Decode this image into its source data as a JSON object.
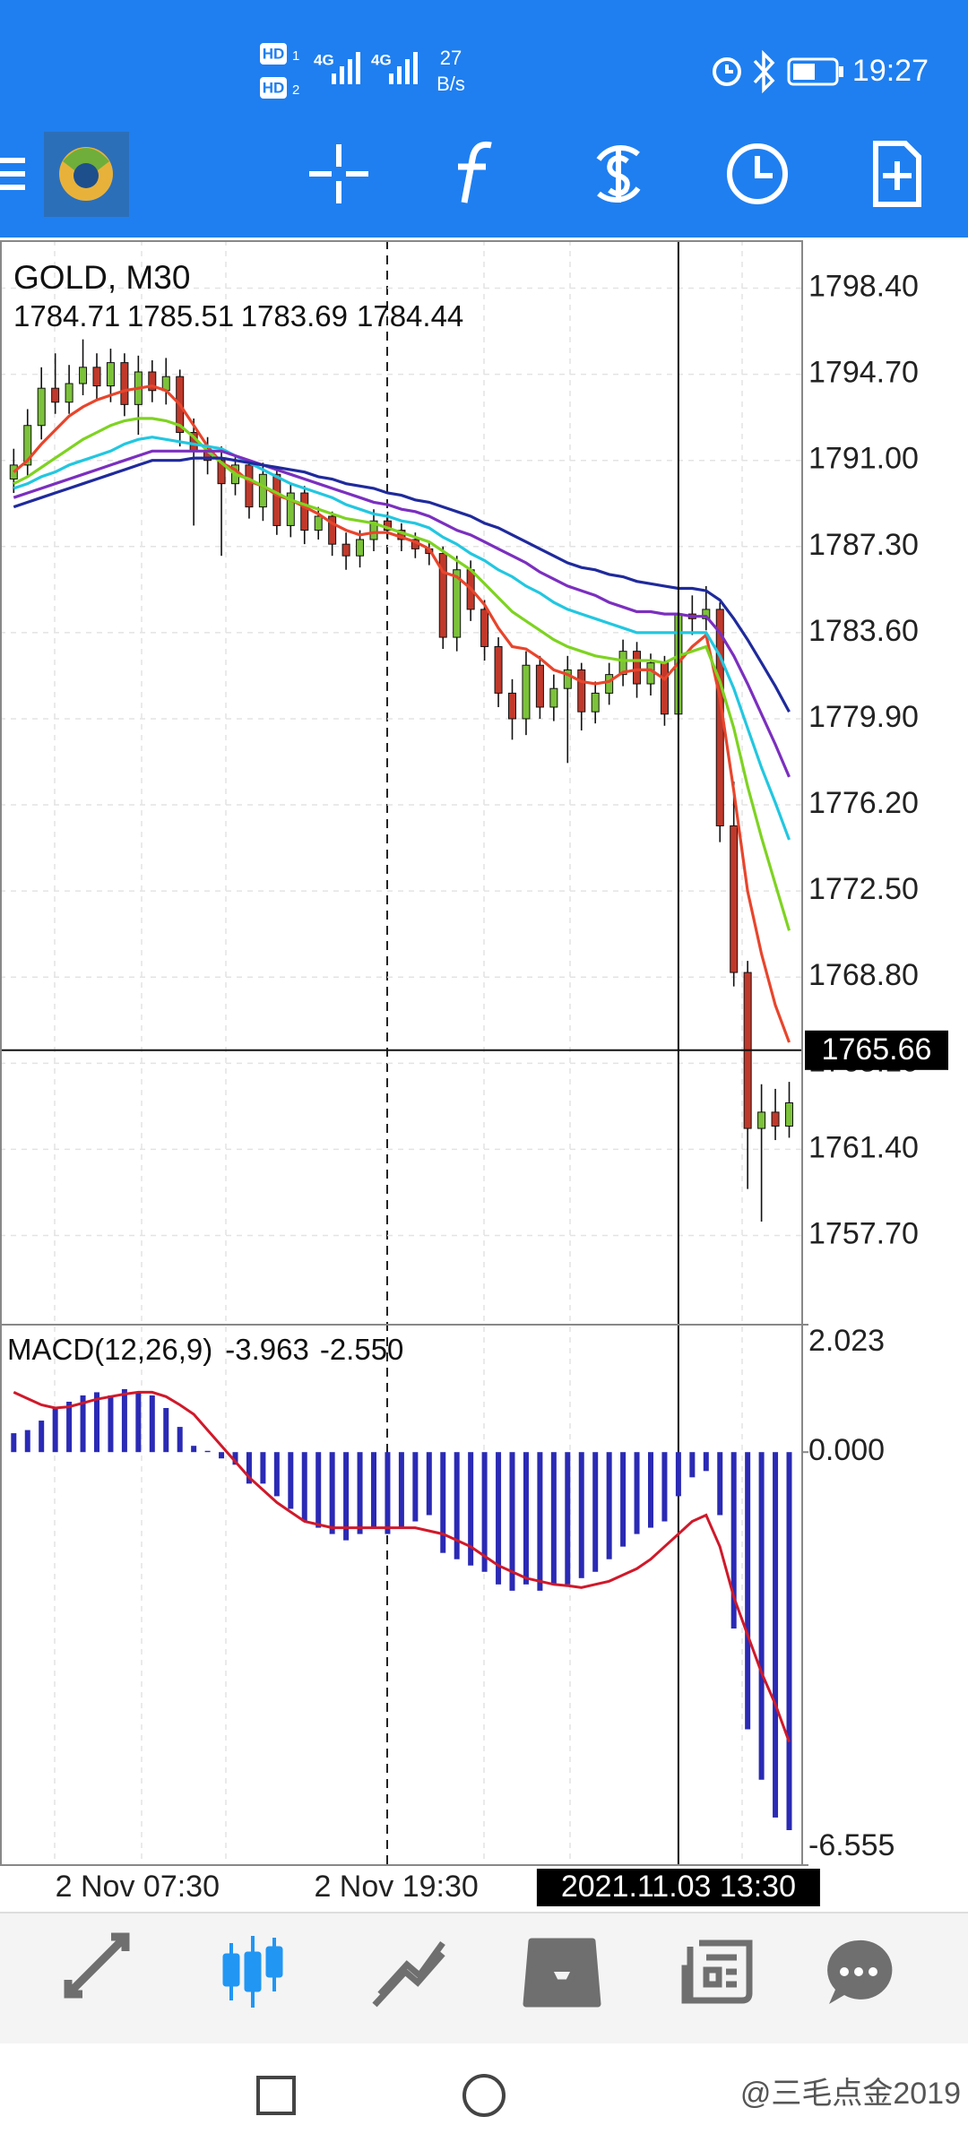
{
  "status_bar": {
    "sims": [
      "HD",
      "HD"
    ],
    "sim_numbers": [
      1,
      2
    ],
    "network": [
      "4G",
      "4G"
    ],
    "speed": 27,
    "speed_unit": "B/s",
    "time": "19:27"
  },
  "chart_data": [
    {
      "type": "candlestick",
      "title": "GOLD, M30",
      "ohlc_readout": [
        1784.71,
        1785.51,
        1783.69,
        1784.44
      ],
      "categories": [
        null,
        null,
        null,
        "2 Nov 07:30",
        null,
        null,
        null,
        null,
        null,
        null,
        null,
        null,
        null,
        null,
        null,
        null,
        null,
        null,
        null,
        null,
        null,
        null,
        null,
        null,
        null,
        null,
        null,
        "2 Nov 19:30",
        null,
        null,
        null,
        null,
        null,
        null,
        null,
        null,
        null,
        null,
        null,
        null,
        null,
        null,
        null,
        null,
        null,
        null,
        null,
        null,
        "2021.11.03 13:30",
        null,
        null,
        null,
        null,
        null,
        null,
        null,
        null
      ],
      "open": [
        1790.2,
        1790.8,
        1792.5,
        1794.1,
        1793.5,
        1794.3,
        1795.0,
        1794.2,
        1795.2,
        1793.4,
        1794.8,
        1794.0,
        1794.6,
        1792.2,
        1791.4,
        1791.0,
        1790.0,
        1790.8,
        1789.0,
        1790.4,
        1788.2,
        1789.6,
        1788.0,
        1788.6,
        1787.4,
        1786.9,
        1787.6,
        1788.4,
        1788.0,
        1787.6,
        1787.2,
        1787.0,
        1783.4,
        1786.3,
        1784.6,
        1783.0,
        1781.0,
        1779.9,
        1782.2,
        1780.4,
        1781.2,
        1782.0,
        1780.2,
        1781.0,
        1781.8,
        1782.8,
        1781.4,
        1782.3,
        1780.1,
        1784.4,
        1784.2,
        1784.6,
        1775.3,
        1769.0,
        1762.3,
        1763.0,
        1762.4
      ],
      "high": [
        1791.5,
        1793.2,
        1795.0,
        1795.6,
        1795.1,
        1796.2,
        1795.6,
        1795.8,
        1795.6,
        1795.5,
        1795.3,
        1795.4,
        1794.9,
        1792.8,
        1792.0,
        1791.6,
        1791.2,
        1791.0,
        1790.9,
        1790.6,
        1790.0,
        1789.9,
        1789.0,
        1788.8,
        1787.9,
        1788.0,
        1788.9,
        1788.8,
        1788.3,
        1787.9,
        1787.5,
        1787.3,
        1786.9,
        1786.7,
        1785.0,
        1783.4,
        1781.6,
        1782.8,
        1782.6,
        1781.8,
        1782.6,
        1782.3,
        1781.5,
        1782.3,
        1783.3,
        1783.2,
        1782.7,
        1782.6,
        1785.4,
        1785.2,
        1785.6,
        1784.9,
        1777.2,
        1769.5,
        1764.2,
        1764.0,
        1764.3
      ],
      "low": [
        1789.6,
        1790.3,
        1791.9,
        1793.0,
        1793.0,
        1793.8,
        1793.6,
        1793.5,
        1792.9,
        1792.1,
        1793.5,
        1793.4,
        1791.6,
        1788.2,
        1790.4,
        1786.9,
        1789.5,
        1788.5,
        1788.4,
        1787.8,
        1787.7,
        1787.4,
        1787.6,
        1786.9,
        1786.3,
        1786.4,
        1787.1,
        1787.6,
        1787.1,
        1786.8,
        1786.5,
        1782.9,
        1782.8,
        1784.1,
        1782.4,
        1780.4,
        1779.0,
        1779.2,
        1779.9,
        1779.8,
        1778.0,
        1779.4,
        1779.7,
        1780.5,
        1781.3,
        1780.8,
        1780.9,
        1779.6,
        1779.8,
        1783.5,
        1783.7,
        1774.6,
        1768.4,
        1759.7,
        1758.3,
        1761.8,
        1761.9
      ],
      "close": [
        1790.8,
        1792.5,
        1794.1,
        1793.5,
        1794.3,
        1795.0,
        1794.2,
        1795.2,
        1793.4,
        1794.8,
        1794.0,
        1794.6,
        1792.2,
        1791.4,
        1791.0,
        1790.0,
        1790.8,
        1789.0,
        1790.4,
        1788.2,
        1789.6,
        1788.0,
        1788.6,
        1787.4,
        1786.9,
        1787.6,
        1788.4,
        1788.0,
        1787.6,
        1787.2,
        1787.0,
        1783.4,
        1786.3,
        1784.6,
        1783.0,
        1781.0,
        1779.9,
        1782.2,
        1780.4,
        1781.2,
        1782.0,
        1780.2,
        1781.0,
        1781.8,
        1782.8,
        1781.4,
        1782.3,
        1780.1,
        1784.4,
        1784.2,
        1784.6,
        1775.3,
        1769.0,
        1762.3,
        1763.0,
        1762.4,
        1763.4
      ],
      "up_color": "#7cc23a",
      "down_color": "#c0392b",
      "series": [
        {
          "color": "#e8452c",
          "values": [
            1790.5,
            1791.0,
            1791.7,
            1792.3,
            1792.9,
            1793.3,
            1793.6,
            1793.8,
            1794.0,
            1794.1,
            1794.2,
            1794.0,
            1793.4,
            1792.5,
            1791.6,
            1790.9,
            1790.6,
            1790.1,
            1789.9,
            1789.5,
            1789.3,
            1789.0,
            1788.7,
            1788.3,
            1788.0,
            1787.8,
            1787.9,
            1787.9,
            1787.7,
            1787.5,
            1787.2,
            1786.2,
            1786.0,
            1785.5,
            1784.8,
            1783.8,
            1783.0,
            1782.9,
            1782.5,
            1782.0,
            1781.8,
            1781.5,
            1781.4,
            1781.5,
            1781.9,
            1782.0,
            1782.0,
            1781.6,
            1782.3,
            1783.0,
            1783.5,
            1780.8,
            1776.8,
            1772.5,
            1769.8,
            1767.6,
            1766.0
          ]
        },
        {
          "color": "#7ed321",
          "values": [
            1790.0,
            1790.3,
            1790.7,
            1791.1,
            1791.5,
            1791.9,
            1792.2,
            1792.5,
            1792.7,
            1792.8,
            1792.8,
            1792.7,
            1792.5,
            1792.0,
            1791.4,
            1790.9,
            1790.4,
            1790.2,
            1789.9,
            1789.6,
            1789.3,
            1789.1,
            1788.9,
            1788.7,
            1788.5,
            1788.4,
            1788.3,
            1788.1,
            1787.9,
            1787.7,
            1787.5,
            1787.1,
            1786.7,
            1786.3,
            1785.7,
            1785.1,
            1784.5,
            1784.1,
            1783.7,
            1783.3,
            1783.0,
            1782.8,
            1782.6,
            1782.5,
            1782.4,
            1782.4,
            1782.4,
            1782.3,
            1782.6,
            1782.8,
            1783.0,
            1781.5,
            1779.5,
            1777.0,
            1774.8,
            1772.8,
            1770.8
          ]
        },
        {
          "color": "#22c7e0",
          "values": [
            1789.8,
            1790.0,
            1790.3,
            1790.5,
            1790.8,
            1791.0,
            1791.2,
            1791.4,
            1791.7,
            1791.9,
            1792.0,
            1791.9,
            1791.8,
            1791.7,
            1791.6,
            1791.5,
            1791.2,
            1790.9,
            1790.6,
            1790.3,
            1790.0,
            1789.8,
            1789.6,
            1789.4,
            1789.1,
            1788.9,
            1788.7,
            1788.6,
            1788.4,
            1788.3,
            1788.1,
            1787.7,
            1787.4,
            1787.0,
            1786.7,
            1786.3,
            1786.0,
            1785.6,
            1785.3,
            1784.9,
            1784.6,
            1784.4,
            1784.2,
            1784.0,
            1783.8,
            1783.6,
            1783.6,
            1783.6,
            1783.6,
            1783.6,
            1783.6,
            1782.6,
            1781.2,
            1779.5,
            1777.8,
            1776.3,
            1774.7
          ]
        },
        {
          "color": "#7b2fbf",
          "values": [
            1789.4,
            1789.6,
            1789.8,
            1790.0,
            1790.2,
            1790.4,
            1790.6,
            1790.8,
            1791.0,
            1791.2,
            1791.4,
            1791.4,
            1791.4,
            1791.4,
            1791.4,
            1791.4,
            1791.2,
            1791.0,
            1790.8,
            1790.6,
            1790.4,
            1790.2,
            1790.0,
            1789.8,
            1789.6,
            1789.4,
            1789.2,
            1789.1,
            1788.9,
            1788.8,
            1788.6,
            1788.3,
            1788.0,
            1787.8,
            1787.5,
            1787.2,
            1786.9,
            1786.6,
            1786.2,
            1785.9,
            1785.6,
            1785.4,
            1785.2,
            1784.9,
            1784.7,
            1784.5,
            1784.5,
            1784.4,
            1784.4,
            1784.3,
            1784.3,
            1783.6,
            1782.6,
            1781.4,
            1780.1,
            1778.8,
            1777.4
          ]
        },
        {
          "color": "#1f2a9c",
          "values": [
            1789.0,
            1789.2,
            1789.4,
            1789.6,
            1789.8,
            1790.0,
            1790.2,
            1790.4,
            1790.6,
            1790.8,
            1791.0,
            1791.0,
            1791.0,
            1791.1,
            1791.1,
            1791.1,
            1791.0,
            1790.9,
            1790.8,
            1790.7,
            1790.6,
            1790.5,
            1790.3,
            1790.2,
            1790.0,
            1789.9,
            1789.8,
            1789.6,
            1789.5,
            1789.3,
            1789.2,
            1789.0,
            1788.8,
            1788.6,
            1788.3,
            1788.1,
            1787.8,
            1787.5,
            1787.2,
            1786.9,
            1786.6,
            1786.4,
            1786.3,
            1786.1,
            1786.0,
            1785.8,
            1785.7,
            1785.6,
            1785.5,
            1785.5,
            1785.4,
            1785.0,
            1784.2,
            1783.3,
            1782.3,
            1781.3,
            1780.2
          ]
        }
      ],
      "current_price": 1765.66,
      "ylim": [
        1753.87,
        1800.46
      ],
      "yticks": [
        {
          "value": 1798.4,
          "label": "1798.40"
        },
        {
          "value": 1794.7,
          "label": "1794.70"
        },
        {
          "value": 1791.0,
          "label": "1791.00"
        },
        {
          "value": 1787.3,
          "label": "1787.30"
        },
        {
          "value": 1783.6,
          "label": "1783.60"
        },
        {
          "value": 1779.9,
          "label": "1779.90"
        },
        {
          "value": 1776.2,
          "label": "1776.20"
        },
        {
          "value": 1772.5,
          "label": "1772.50"
        },
        {
          "value": 1768.8,
          "label": "1768.80"
        },
        {
          "value": 1765.1,
          "label": "1765.10"
        },
        {
          "value": 1761.4,
          "label": "1761.40"
        },
        {
          "value": 1757.7,
          "label": "1757.70"
        }
      ],
      "grid": true
    },
    {
      "type": "macd",
      "title": "MACD(12,26,9)",
      "macd_value": -3.963,
      "signal_value": {
        "value": -2.55,
        "label": "-2.550"
      },
      "color": "#2a2ab5",
      "values": [
        0.3,
        0.35,
        0.5,
        0.7,
        0.8,
        0.9,
        0.95,
        0.9,
        1.0,
        0.95,
        0.9,
        0.7,
        0.4,
        0.1,
        0.02,
        -0.1,
        -0.2,
        -0.5,
        -0.5,
        -0.7,
        -0.9,
        -1.1,
        -1.2,
        -1.3,
        -1.4,
        -1.3,
        -1.2,
        -1.3,
        -1.2,
        -1.1,
        -1.0,
        -1.6,
        -1.7,
        -1.8,
        -1.9,
        -2.1,
        -2.2,
        -2.1,
        -2.2,
        -2.1,
        -2.1,
        -2.0,
        -1.9,
        -1.7,
        -1.5,
        -1.3,
        -1.2,
        -1.1,
        -0.7,
        -0.4,
        -0.3,
        -1.0,
        -2.8,
        -4.4,
        -5.2,
        -5.8,
        -6.0
      ],
      "series": [
        {
          "color": "#d0192a",
          "values": [
            0.95,
            0.85,
            0.75,
            0.7,
            0.72,
            0.78,
            0.84,
            0.88,
            0.92,
            0.95,
            0.95,
            0.88,
            0.75,
            0.6,
            0.35,
            0.1,
            -0.15,
            -0.4,
            -0.6,
            -0.8,
            -0.95,
            -1.1,
            -1.15,
            -1.2,
            -1.2,
            -1.2,
            -1.2,
            -1.2,
            -1.2,
            -1.2,
            -1.25,
            -1.3,
            -1.4,
            -1.5,
            -1.65,
            -1.8,
            -1.9,
            -2.0,
            -2.05,
            -2.1,
            -2.12,
            -2.15,
            -2.1,
            -2.05,
            -1.95,
            -1.85,
            -1.7,
            -1.5,
            -1.3,
            -1.1,
            -1.0,
            -1.5,
            -2.3,
            -2.9,
            -3.5,
            -4.0,
            -4.6
          ]
        }
      ],
      "ylim": [
        -6.555,
        2.023
      ],
      "yticks": [
        2.023,
        {
          "value": 0,
          "label": "0.000"
        },
        -6.555
      ]
    }
  ],
  "watermark": "@三毛点金2019"
}
